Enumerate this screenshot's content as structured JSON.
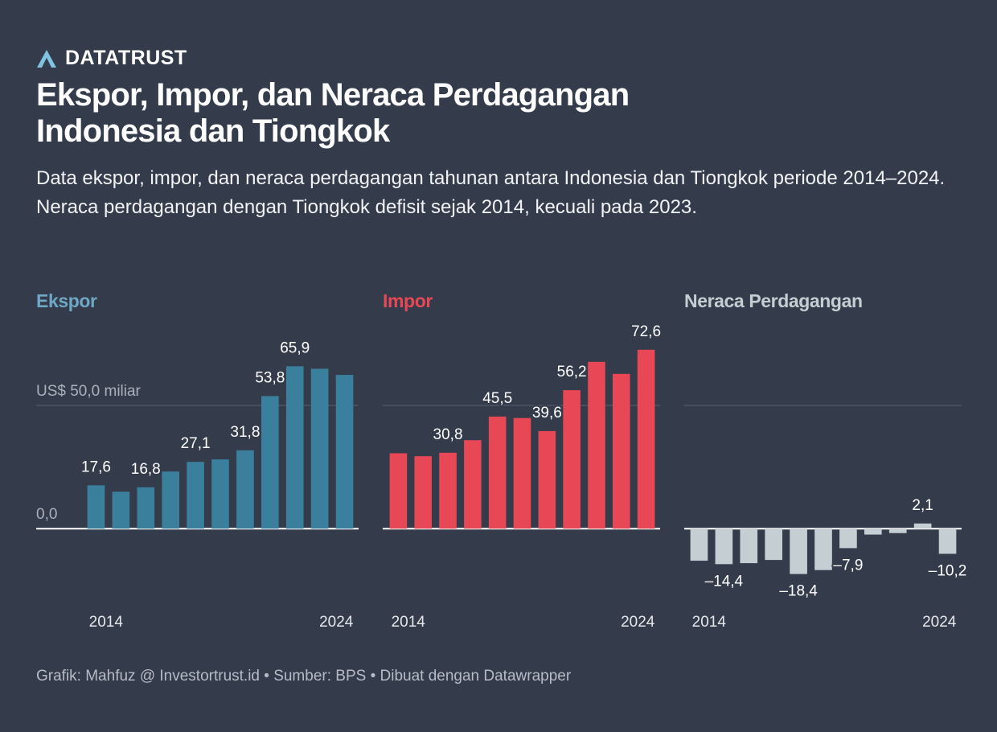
{
  "header": {
    "brand": "DATATRUST",
    "title": "Ekspor, Impor, dan Neraca Perdagangan Indonesia dan Tiongkok",
    "subtitle": "Data ekspor, impor, dan neraca perdagangan tahunan antara Indonesia dan Tiongkok periode 2014–2024. Neraca perdagangan dengan Tiongkok defisit sejak 2014, kecuali pada 2023."
  },
  "chart_data": [
    {
      "type": "bar",
      "title": "Ekspor",
      "title_color": "#6fa8c6",
      "color": "#3a7f9c",
      "categories": [
        "2014",
        null,
        null,
        null,
        null,
        null,
        null,
        null,
        null,
        null,
        "2024"
      ],
      "values": [
        17.6,
        15.0,
        16.8,
        23.2,
        27.1,
        28.1,
        31.8,
        53.8,
        65.9,
        64.9,
        62.4
      ],
      "value_labels": [
        "17,6",
        null,
        "16,8",
        null,
        "27,1",
        null,
        "31,8",
        "53,8",
        "65,9",
        null,
        null
      ],
      "ylim": [
        -28,
        82
      ],
      "yticks": [
        {
          "value": 0,
          "label": "0,0"
        },
        {
          "value": 50,
          "label": "US$ 50,0 miliar"
        }
      ],
      "grid": true
    },
    {
      "type": "bar",
      "title": "Impor",
      "title_color": "#e84855",
      "color": "#e84855",
      "categories": [
        "2014",
        null,
        null,
        null,
        null,
        null,
        null,
        null,
        null,
        null,
        "2024"
      ],
      "values": [
        30.6,
        29.4,
        30.8,
        35.9,
        45.5,
        44.9,
        39.6,
        56.2,
        67.7,
        62.8,
        72.6
      ],
      "value_labels": [
        null,
        null,
        "30,8",
        null,
        "45,5",
        null,
        "39,6",
        "56,2",
        null,
        null,
        "72,6"
      ],
      "ylim": [
        -28,
        82
      ],
      "yticks": [
        0,
        50
      ],
      "grid": true
    },
    {
      "type": "bar",
      "title": "Neraca Perdagangan",
      "title_color": "#c5cfd3",
      "color": "#c5cfd3",
      "categories": [
        "2014",
        null,
        null,
        null,
        null,
        null,
        null,
        null,
        null,
        null,
        "2024"
      ],
      "values": [
        -13.0,
        -14.4,
        -14.0,
        -12.7,
        -18.4,
        -16.8,
        -7.9,
        -2.4,
        -1.8,
        2.1,
        -10.2
      ],
      "value_labels": [
        null,
        "–14,4",
        null,
        null,
        "–18,4",
        null,
        "–7,9",
        null,
        null,
        "2,1",
        "–10,2"
      ],
      "ylim": [
        -28,
        82
      ],
      "yticks": [
        0,
        50
      ],
      "grid": true
    }
  ],
  "footer": "Grafik: Mahfuz @ Investortrust.id • Sumber: BPS • Dibuat dengan Datawrapper"
}
